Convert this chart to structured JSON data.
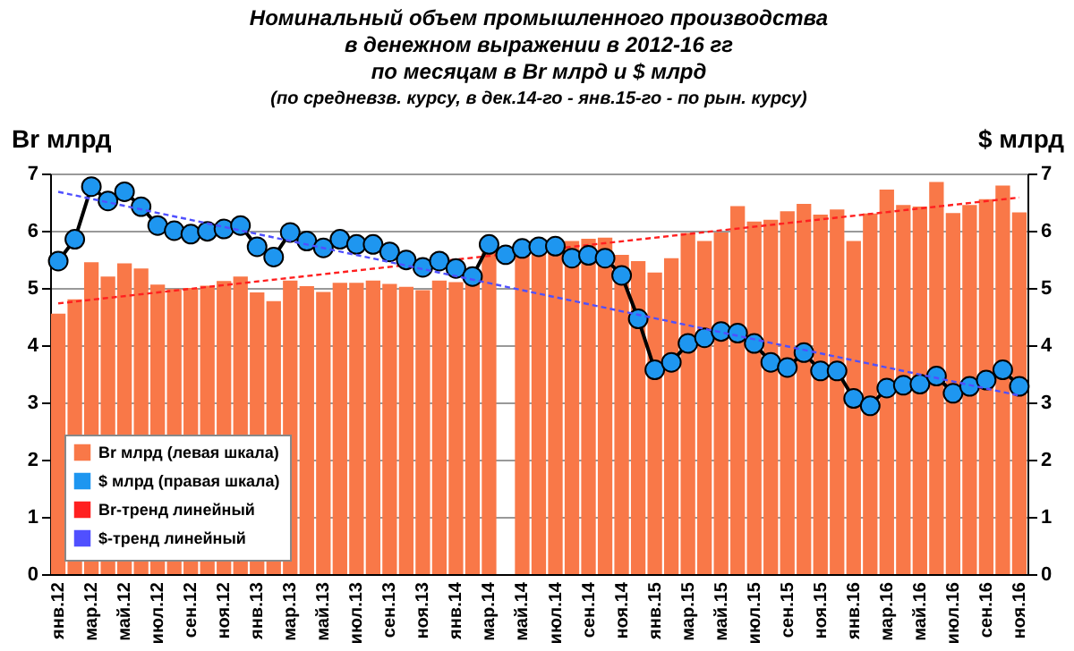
{
  "chart_data": {
    "type": "bar",
    "title": "Номинальный  объем  промышленного  производства\nв денежном  выражении  в 2012-16 гг\nпо месяцам в Br млрд и $ млрд",
    "subtitle": "(по средневзв.  курсу,  в дек.14-го  - янв.15-го  - по рын. курсу)",
    "ylabel": "Br млрд",
    "y2label": "$ млрд",
    "categories": [
      "янв.12",
      null,
      "мар.12",
      null,
      "май.12",
      null,
      "июл.12",
      null,
      "сен.12",
      null,
      "ноя.12",
      null,
      "янв.13",
      null,
      "мар.13",
      null,
      "май.13",
      null,
      "июл.13",
      null,
      "сен.13",
      null,
      "ноя.13",
      null,
      "янв.14",
      null,
      "мар.14",
      null,
      "май.14",
      null,
      "июл.14",
      null,
      "сен.14",
      null,
      "ноя.14",
      null,
      "янв.15",
      null,
      "мар.15",
      null,
      "май.15",
      null,
      "июл.15",
      null,
      "сен.15",
      null,
      "ноя.15",
      null,
      "янв.16",
      null,
      "мар.16",
      null,
      "май.16",
      null,
      "июл.16",
      null,
      "сен.16",
      null,
      "ноя.16"
    ],
    "series": [
      {
        "name": "Br млрд (левая шкала)",
        "color": "#f97848",
        "values": [
          4.55,
          4.8,
          5.45,
          5.2,
          5.43,
          5.34,
          5.06,
          4.98,
          5.0,
          5.04,
          5.12,
          5.2,
          4.92,
          4.77,
          5.13,
          5.03,
          4.93,
          5.09,
          5.09,
          5.13,
          5.07,
          5.02,
          4.96,
          5.13,
          5.1,
          5.07,
          5.62,
          null,
          5.65,
          5.67,
          5.68,
          5.82,
          5.86,
          5.88,
          5.58,
          5.47,
          5.27,
          5.52,
          5.96,
          5.82,
          5.97,
          6.43,
          6.16,
          6.19,
          6.34,
          6.47,
          6.28,
          6.37,
          5.82,
          6.3,
          6.72,
          6.45,
          6.42,
          6.85,
          6.31,
          6.45,
          6.55,
          6.79,
          6.32
        ]
      },
      {
        "name": "$ млрд (правая шкала)",
        "type": "line",
        "axis": "y2",
        "marker": "circle",
        "color": "#1e96f0",
        "values": [
          5.47,
          5.85,
          6.77,
          6.52,
          6.68,
          6.42,
          6.09,
          6.0,
          5.94,
          5.99,
          6.03,
          6.09,
          5.72,
          5.54,
          5.97,
          5.82,
          5.7,
          5.85,
          5.76,
          5.76,
          5.63,
          5.49,
          5.36,
          5.47,
          5.34,
          5.2,
          5.76,
          5.58,
          5.69,
          5.72,
          5.73,
          5.52,
          5.57,
          5.52,
          5.22,
          4.46,
          3.57,
          3.7,
          4.03,
          4.13,
          4.24,
          4.21,
          4.03,
          3.7,
          3.61,
          3.87,
          3.55,
          3.55,
          3.07,
          2.94,
          3.25,
          3.3,
          3.32,
          3.46,
          3.16,
          3.28,
          3.39,
          3.57,
          3.28
        ]
      },
      {
        "name": "Br-тренд линейный",
        "type": "line",
        "line_style": "dashed",
        "color": "#ff2020",
        "x": [
          "янв.12",
          "ноя.16"
        ],
        "values": [
          4.73,
          6.58
        ]
      },
      {
        "name": "$-тренд линейный",
        "type": "line",
        "axis": "y2",
        "line_style": "dashed",
        "color": "#5050ff",
        "x": [
          "янв.12",
          "ноя.16"
        ],
        "values": [
          6.68,
          3.12
        ]
      }
    ],
    "ylim": [
      0,
      7
    ],
    "yticks": [
      0,
      1,
      2,
      3,
      4,
      5,
      6,
      7
    ],
    "y2lim": [
      0,
      7
    ],
    "y2ticks": [
      0,
      1,
      2,
      3,
      4,
      5,
      6,
      7
    ],
    "grid": "y",
    "legend": "bottom left"
  }
}
